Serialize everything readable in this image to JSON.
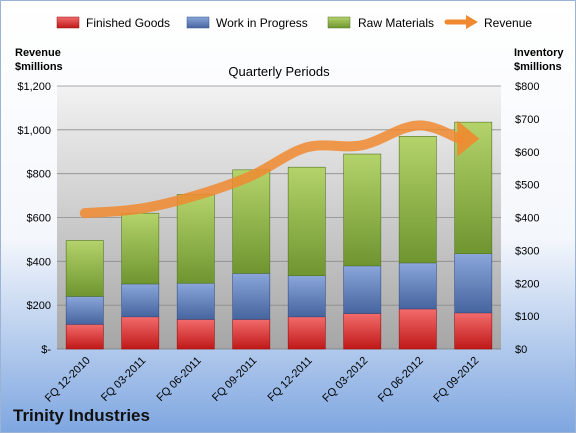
{
  "chart_data": {
    "type": "bar",
    "stacked": true,
    "subtitle": "Quarterly Periods",
    "company": "Trinity Industries",
    "left_axis_label_line1": "Revenue",
    "left_axis_label_line2": "$millions",
    "right_axis_label_line1": "Inventory",
    "right_axis_label_line2": "$millions",
    "categories": [
      "FQ 12-2010",
      "FQ 03-2011",
      "FQ 06-2011",
      "FQ 09-2011",
      "FQ 12-2011",
      "FQ 03-2012",
      "FQ 06-2012",
      "FQ 09-2012"
    ],
    "left_axis": {
      "ylim": [
        0,
        1200
      ],
      "ticks": [
        0,
        200,
        400,
        600,
        800,
        1000,
        1200
      ],
      "tick_labels": [
        "$-",
        "$200",
        "$400",
        "$600",
        "$800",
        "$1,000",
        "$1,200"
      ]
    },
    "right_axis": {
      "ylim": [
        0,
        800
      ],
      "ticks": [
        0,
        100,
        200,
        300,
        400,
        500,
        600,
        700,
        800
      ],
      "tick_labels": [
        "$0",
        "$100",
        "$200",
        "$300",
        "$400",
        "$500",
        "$600",
        "$700",
        "$800"
      ]
    },
    "series": [
      {
        "name": "Finished Goods",
        "axis": "right",
        "color": "#e02020",
        "values": [
          75,
          98,
          90,
          90,
          98,
          108,
          122,
          110
        ]
      },
      {
        "name": "Work in Progress",
        "axis": "right",
        "color": "#5b7ec0",
        "values": [
          85,
          100,
          110,
          140,
          125,
          145,
          140,
          180
        ]
      },
      {
        "name": "Raw Materials",
        "axis": "right",
        "color": "#8cb33e",
        "values": [
          170,
          215,
          270,
          315,
          330,
          340,
          385,
          400
        ]
      },
      {
        "name": "Revenue",
        "axis": "left",
        "type": "line",
        "color": "#f08a30",
        "values": [
          620,
          640,
          700,
          790,
          920,
          930,
          1020,
          960
        ]
      }
    ],
    "legend_position": "top",
    "grid": true,
    "colors": {
      "plot_top": "#f2f2f2",
      "plot_bottom": "#a6a6a6",
      "bg_top": "#ffffff",
      "bg_bottom": "#7ea6e0"
    }
  }
}
